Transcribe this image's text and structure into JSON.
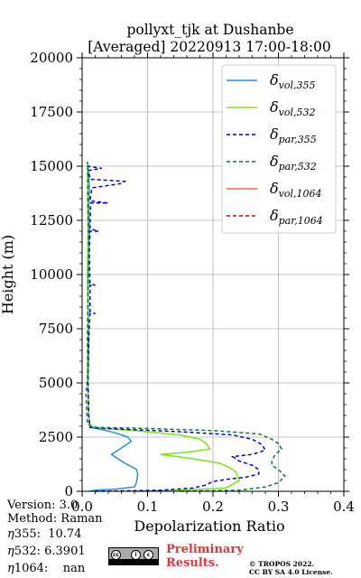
{
  "title_line1": "pollyxt_tjk at Dushanbe",
  "title_line2": "[Averaged] 20220913 17:00-18:00",
  "info": {
    "version": "Version: 3.0",
    "method": "Method: Raman",
    "eta355_label": "355:  10.74",
    "eta532_label": "532: 6.3901",
    "eta1064_label": "1064:    nan",
    "eta_symbol": "η"
  },
  "preliminary": {
    "line1": "Preliminary",
    "line2": "Results."
  },
  "copyright": {
    "line1": "© TROPOS 2022.",
    "line2": "CC BY SA 4.0 License."
  },
  "badge": {
    "cc": "cc",
    "by": "i",
    "sa": "c"
  },
  "chart_data": {
    "type": "line",
    "xlabel": "Depolarization Ratio",
    "ylabel": "Height (m)",
    "xlim": [
      0.0,
      0.4
    ],
    "ylim": [
      0,
      20000
    ],
    "xticks": [
      "0.0",
      "0.1",
      "0.2",
      "0.3",
      "0.4"
    ],
    "xtick_values": [
      0.0,
      0.1,
      0.2,
      0.3,
      0.4
    ],
    "yticks": [
      "0",
      "2500",
      "5000",
      "7500",
      "10000",
      "12500",
      "15000",
      "17500",
      "20000"
    ],
    "ytick_values": [
      0,
      2500,
      5000,
      7500,
      10000,
      12500,
      15000,
      17500,
      20000
    ],
    "grid": true,
    "legend_position": "top-right",
    "series": [
      {
        "name": "δvol,355",
        "legend_main": "δ",
        "legend_sub": "vol,355",
        "color": "#2b8fd9",
        "dash": "solid",
        "points": [
          [
            0.01,
            0
          ],
          [
            0.02,
            50
          ],
          [
            0.05,
            100
          ],
          [
            0.08,
            200
          ],
          [
            0.083,
            400
          ],
          [
            0.085,
            800
          ],
          [
            0.083,
            1000
          ],
          [
            0.078,
            1100
          ],
          [
            0.065,
            1300
          ],
          [
            0.055,
            1500
          ],
          [
            0.045,
            1700
          ],
          [
            0.055,
            1900
          ],
          [
            0.065,
            2100
          ],
          [
            0.075,
            2300
          ],
          [
            0.07,
            2500
          ],
          [
            0.05,
            2700
          ],
          [
            0.03,
            2850
          ],
          [
            0.012,
            2950
          ],
          [
            0.01,
            3500
          ],
          [
            0.009,
            5000
          ],
          [
            0.01,
            7000
          ],
          [
            0.009,
            9000
          ],
          [
            0.01,
            11000
          ],
          [
            0.011,
            12000
          ],
          [
            0.01,
            13000
          ],
          [
            0.011,
            14000
          ],
          [
            0.009,
            15000
          ],
          [
            0.008,
            15200
          ]
        ]
      },
      {
        "name": "δvol,532",
        "legend_main": "δ",
        "legend_sub": "vol,532",
        "color": "#7be314",
        "dash": "solid",
        "points": [
          [
            0.08,
            0
          ],
          [
            0.15,
            50
          ],
          [
            0.22,
            150
          ],
          [
            0.24,
            500
          ],
          [
            0.235,
            900
          ],
          [
            0.225,
            1100
          ],
          [
            0.21,
            1300
          ],
          [
            0.17,
            1500
          ],
          [
            0.12,
            1700
          ],
          [
            0.16,
            1800
          ],
          [
            0.195,
            1950
          ],
          [
            0.19,
            2200
          ],
          [
            0.18,
            2400
          ],
          [
            0.15,
            2600
          ],
          [
            0.08,
            2800
          ],
          [
            0.03,
            2900
          ],
          [
            0.012,
            3000
          ],
          [
            0.01,
            3500
          ],
          [
            0.008,
            5500
          ],
          [
            0.009,
            8000
          ],
          [
            0.008,
            10000
          ],
          [
            0.009,
            12000
          ],
          [
            0.008,
            14000
          ],
          [
            0.008,
            15200
          ]
        ]
      },
      {
        "name": "δpar,355",
        "legend_main": "δ",
        "legend_sub": "par,355",
        "color": "#0000cc",
        "dash": "4,3",
        "points": [
          [
            0.02,
            0
          ],
          [
            0.12,
            50
          ],
          [
            0.17,
            150
          ],
          [
            0.19,
            300
          ],
          [
            0.2,
            450
          ],
          [
            0.22,
            550
          ],
          [
            0.25,
            650
          ],
          [
            0.27,
            800
          ],
          [
            0.27,
            1000
          ],
          [
            0.26,
            1200
          ],
          [
            0.24,
            1400
          ],
          [
            0.23,
            1600
          ],
          [
            0.26,
            1700
          ],
          [
            0.28,
            1900
          ],
          [
            0.275,
            2150
          ],
          [
            0.26,
            2400
          ],
          [
            0.23,
            2600
          ],
          [
            0.15,
            2750
          ],
          [
            0.05,
            2880
          ],
          [
            0.012,
            2950
          ],
          [
            0.01,
            3500
          ],
          [
            0.009,
            5000
          ],
          [
            0.01,
            7000
          ],
          [
            0.012,
            8200
          ],
          [
            0.02,
            8200
          ],
          [
            0.012,
            8300
          ],
          [
            0.012,
            9500
          ],
          [
            0.02,
            9500
          ],
          [
            0.012,
            9600
          ],
          [
            0.011,
            11000
          ],
          [
            0.012,
            12000
          ],
          [
            0.025,
            12000
          ],
          [
            0.012,
            12100
          ],
          [
            0.013,
            13300
          ],
          [
            0.04,
            13300
          ],
          [
            0.012,
            13400
          ],
          [
            0.015,
            14000
          ],
          [
            0.06,
            14200
          ],
          [
            0.065,
            14300
          ],
          [
            0.012,
            14400
          ],
          [
            0.01,
            14800
          ],
          [
            0.03,
            14900
          ],
          [
            0.008,
            15000
          ]
        ]
      },
      {
        "name": "δpar,532",
        "legend_main": "δ",
        "legend_sub": "par,532",
        "color": "#0a7a32",
        "dash": "4,3",
        "points": [
          [
            0.15,
            0
          ],
          [
            0.24,
            50
          ],
          [
            0.28,
            200
          ],
          [
            0.3,
            400
          ],
          [
            0.31,
            700
          ],
          [
            0.3,
            1000
          ],
          [
            0.29,
            1200
          ],
          [
            0.29,
            1400
          ],
          [
            0.295,
            1700
          ],
          [
            0.305,
            1950
          ],
          [
            0.3,
            2200
          ],
          [
            0.29,
            2400
          ],
          [
            0.27,
            2650
          ],
          [
            0.2,
            2800
          ],
          [
            0.1,
            2900
          ],
          [
            0.02,
            2950
          ],
          [
            0.008,
            3100
          ],
          [
            0.006,
            4500
          ],
          [
            0.009,
            5500
          ],
          [
            0.008,
            7000
          ],
          [
            0.009,
            9000
          ],
          [
            0.01,
            11000
          ],
          [
            0.009,
            13000
          ],
          [
            0.009,
            15000
          ],
          [
            0.008,
            15200
          ]
        ]
      },
      {
        "name": "δvol,1064",
        "legend_main": "δ",
        "legend_sub": "vol,1064",
        "color": "#ff6347",
        "dash": "solid",
        "points": []
      },
      {
        "name": "δpar,1064",
        "legend_main": "δ",
        "legend_sub": "par,1064",
        "color": "#dd0000",
        "dash": "4,3",
        "points": []
      }
    ]
  }
}
